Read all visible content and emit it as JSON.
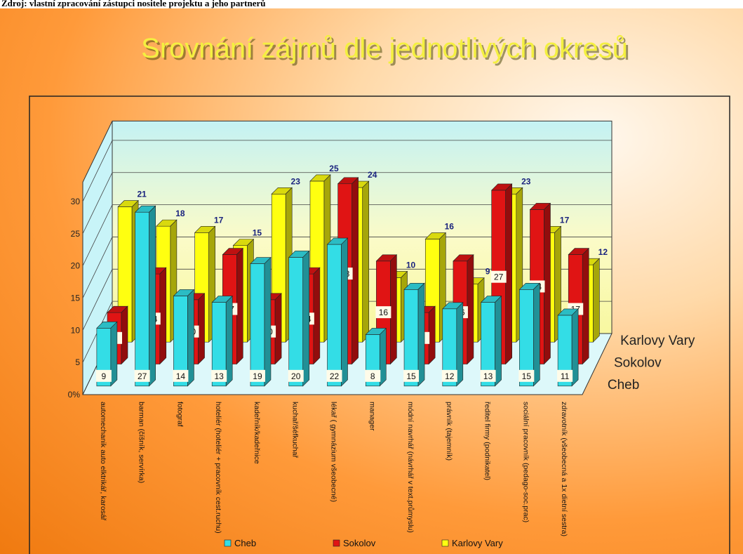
{
  "source": "Zdroj: vlastní zpracování zástupci nositele projektu a jeho partnerů",
  "chart_data": {
    "type": "bar3d",
    "title": "Srovnání zájmů dle jednotlivých okresů",
    "categories": [
      "automechanik auto elktrikář, karosář",
      "barman (číšník, servírka)",
      "fotograf",
      "hoteliér (hoteliér + pracovník cest.ruchu)",
      "kadeřník/kadeřnice",
      "kuchař/šéfkuchař",
      "lékař ( gymnázium všeobecné)",
      "manager",
      "módní navrhář (návrhář v text.průmyslu)",
      "právník (tajemník)",
      "ředitel firmy (podnikatel)",
      "sociální pracovník (pedago-soc.prac)",
      "zdravotník (všeobecná a 1x dietní sestra)"
    ],
    "series": [
      {
        "name": "Cheb",
        "color": "#33dde6",
        "values": [
          9,
          27,
          14,
          13,
          19,
          20,
          22,
          8,
          15,
          12,
          13,
          15,
          11
        ]
      },
      {
        "name": "Sokolov",
        "color": "#e01414",
        "values": [
          8,
          14,
          10,
          17,
          10,
          14,
          28,
          16,
          8,
          16,
          27,
          24,
          17
        ]
      },
      {
        "name": "Karlovy Vary",
        "color": "#ffff10",
        "values": [
          21,
          18,
          17,
          15,
          23,
          25,
          24,
          10,
          16,
          9,
          23,
          17,
          12
        ]
      }
    ],
    "ylim": [
      0,
      33
    ],
    "yticks": [
      {
        "value": 0,
        "label": "0%"
      },
      5,
      10,
      15,
      20,
      25,
      30
    ],
    "grid": true,
    "legend": "bottom"
  }
}
